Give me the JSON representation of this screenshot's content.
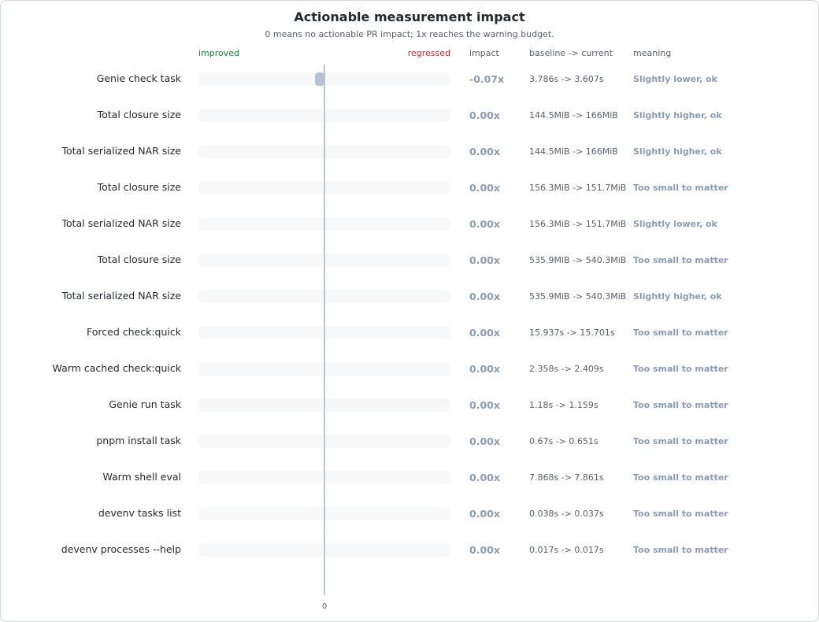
{
  "chart_data": {
    "type": "bar",
    "orientation": "horizontal",
    "title": "Actionable measurement impact",
    "subtitle": "0 means no actionable PR impact; 1x reaches the warning budget.",
    "axis_left_label": "improved",
    "axis_right_label": "regressed",
    "zero_tick": "0",
    "xlim": [
      -1,
      1
    ],
    "columns": {
      "impact": "impact",
      "baseline": "baseline -> current",
      "meaning": "meaning"
    },
    "categories": [
      "Genie check task",
      "Total closure size",
      "Total serialized NAR size",
      "Total closure size",
      "Total serialized NAR size",
      "Total closure size",
      "Total serialized NAR size",
      "Forced check:quick",
      "Warm cached check:quick",
      "Genie run task",
      "pnpm install task",
      "Warm shell eval",
      "devenv tasks list",
      "devenv processes --help"
    ],
    "values": [
      -0.07,
      0,
      0,
      0,
      0,
      0,
      0,
      0,
      0,
      0,
      0,
      0,
      0,
      0
    ],
    "impact_labels": [
      "-0.07x",
      "0.00x",
      "0.00x",
      "0.00x",
      "0.00x",
      "0.00x",
      "0.00x",
      "0.00x",
      "0.00x",
      "0.00x",
      "0.00x",
      "0.00x",
      "0.00x",
      "0.00x"
    ],
    "baseline_current": [
      "3.786s -> 3.607s",
      "144.5MiB -> 166MiB",
      "144.5MiB -> 166MiB",
      "156.3MiB -> 151.7MiB",
      "156.3MiB -> 151.7MiB",
      "535.9MiB -> 540.3MiB",
      "535.9MiB -> 540.3MiB",
      "15.937s -> 15.701s",
      "2.358s -> 2.409s",
      "1.18s -> 1.159s",
      "0.67s -> 0.651s",
      "7.868s -> 7.861s",
      "0.038s -> 0.037s",
      "0.017s -> 0.017s"
    ],
    "meanings": [
      "Slightly lower, ok",
      "Slightly higher, ok",
      "Slightly higher, ok",
      "Too small to matter",
      "Slightly lower, ok",
      "Too small to matter",
      "Slightly higher, ok",
      "Too small to matter",
      "Too small to matter",
      "Too small to matter",
      "Too small to matter",
      "Too small to matter",
      "Too small to matter",
      "Too small to matter"
    ],
    "colors": {
      "improved": "#1a7f37",
      "regressed": "#cf222e",
      "neutral_bar": "#b6c2d1",
      "track": "#f6f8fa"
    }
  }
}
